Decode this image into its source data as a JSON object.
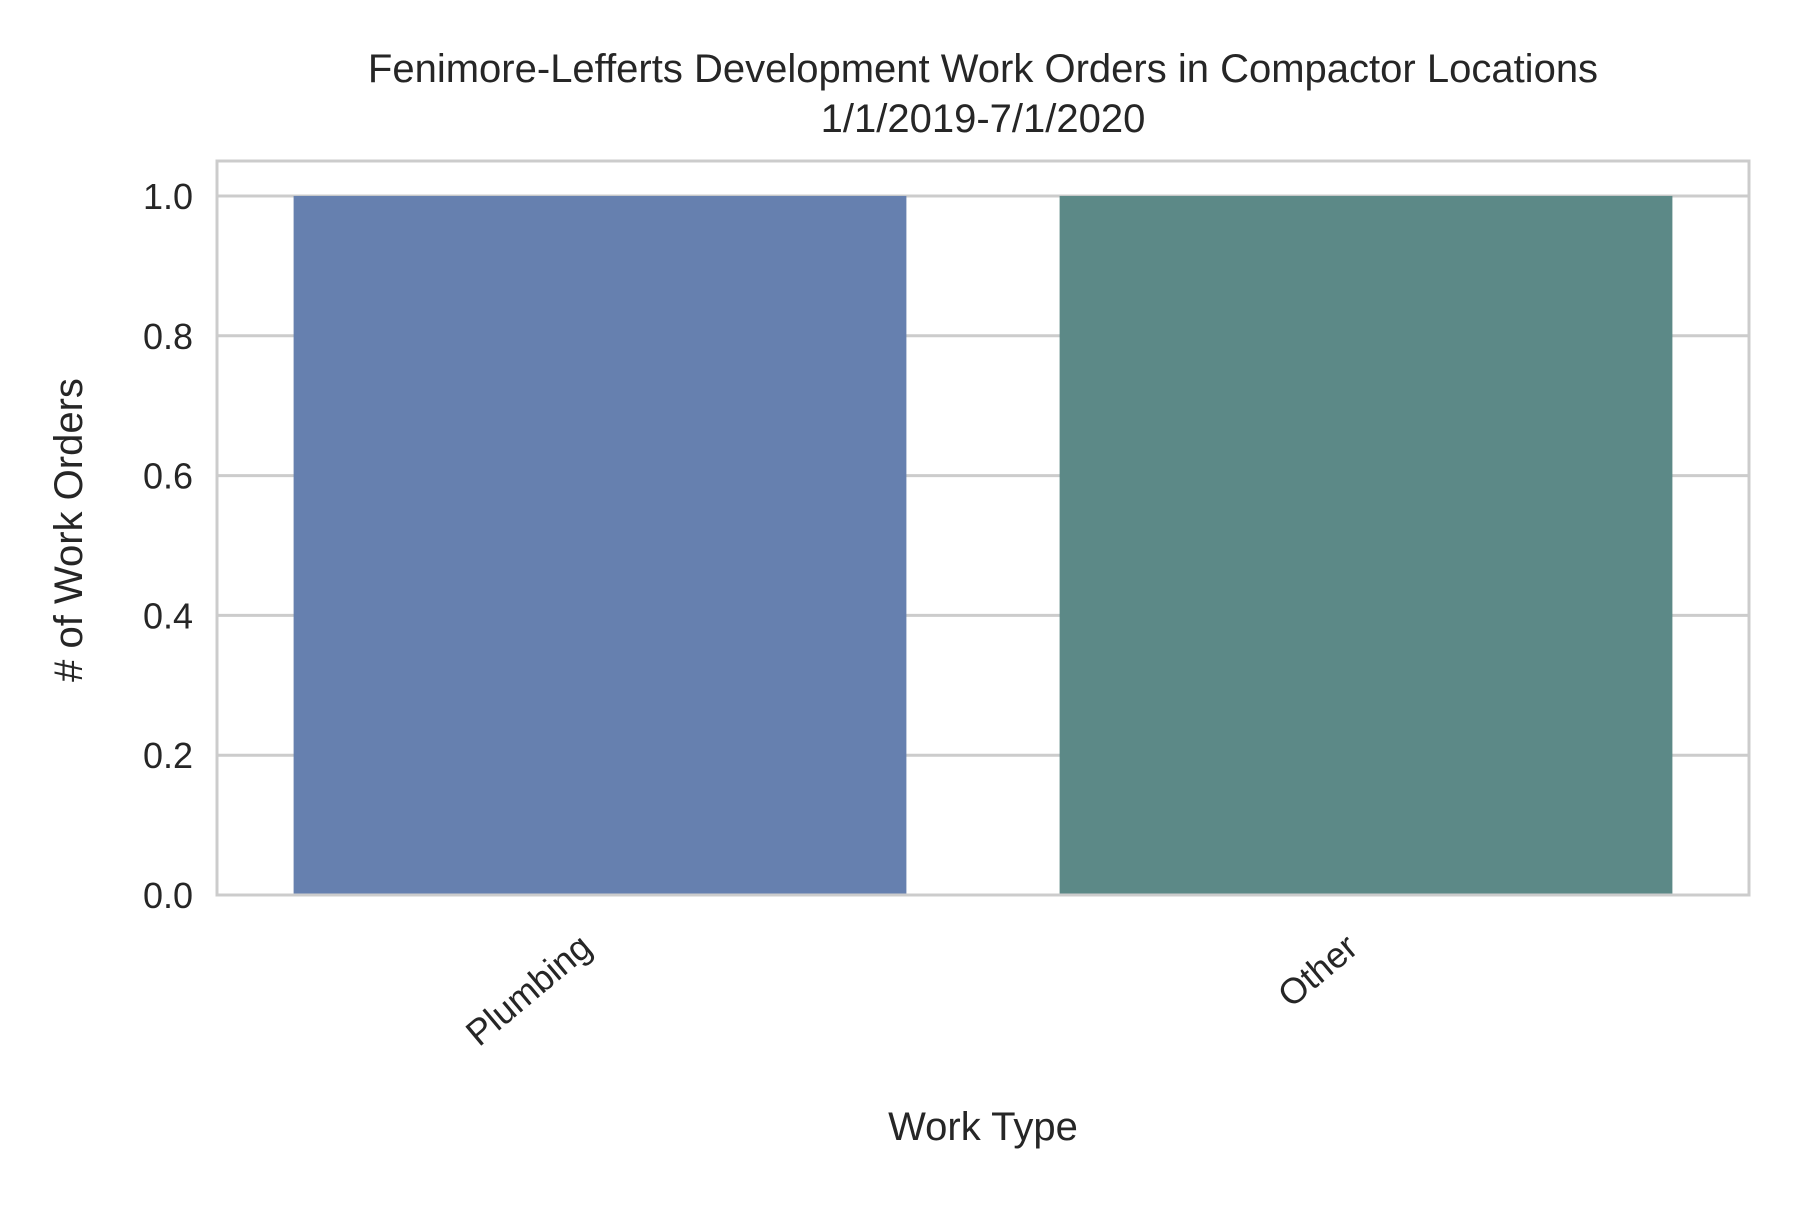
{
  "chart_data": {
    "type": "bar",
    "title_line1": "Fenimore-Lefferts Development Work Orders in Compactor Locations",
    "title_line2": "1/1/2019-7/1/2020",
    "xlabel": "Work Type",
    "ylabel": "# of Work Orders",
    "categories": [
      "Plumbing",
      "Other"
    ],
    "values": [
      1,
      1
    ],
    "bar_colors": [
      "#6680AF",
      "#5C8987"
    ],
    "ylim": [
      0,
      1.05
    ],
    "yticks": [
      0.0,
      0.2,
      0.4,
      0.6,
      0.8,
      1.0
    ],
    "ytick_labels": [
      "0.0",
      "0.2",
      "0.4",
      "0.6",
      "0.8",
      "1.0"
    ],
    "grid": true,
    "grid_axis": "y",
    "legend": "none"
  },
  "colors": {
    "background": "#ffffff",
    "grid": "#cccccc",
    "spine": "#cccccc",
    "text": "#262626"
  }
}
